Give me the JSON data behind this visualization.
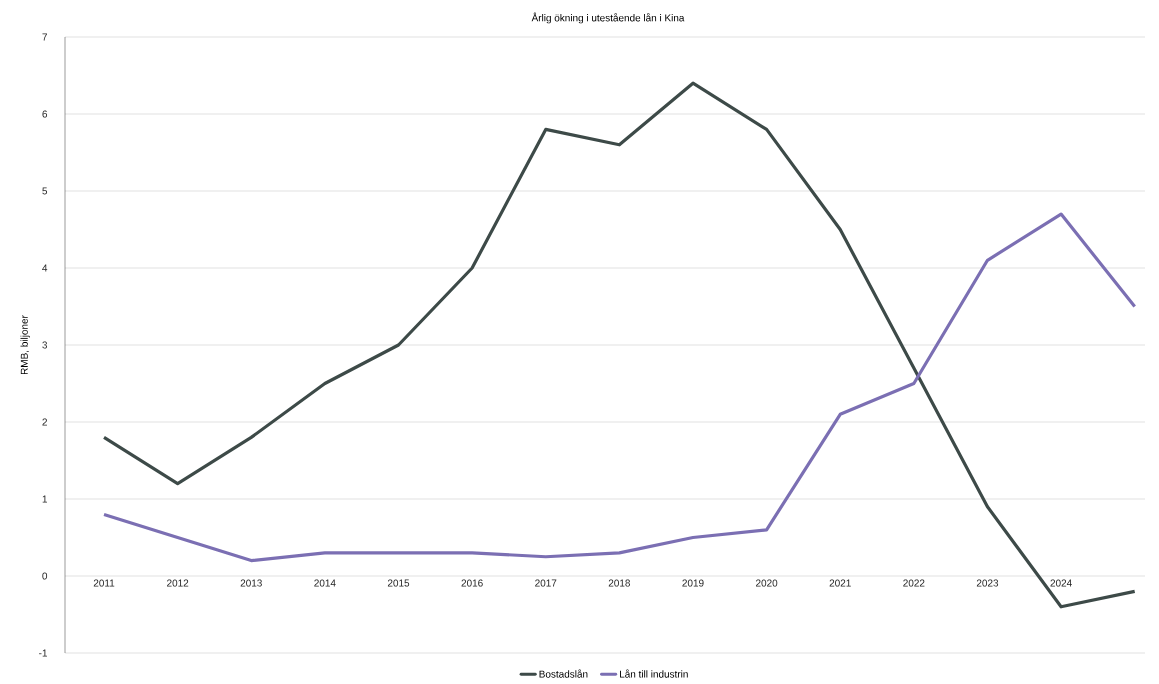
{
  "chart_data": {
    "type": "line",
    "title": "Årlig ökning i utestående lån i Kina",
    "ylabel": "RMB, biljoner",
    "categories": [
      "2011",
      "2012",
      "2013",
      "2014",
      "2015",
      "2016",
      "2017",
      "2018",
      "2019",
      "2020",
      "2021",
      "2022",
      "2023",
      "2024",
      null
    ],
    "series": [
      {
        "name": "Bostadslån",
        "color": "#3d4a48",
        "values": [
          1.8,
          1.2,
          1.8,
          2.5,
          3.0,
          4.0,
          5.8,
          5.6,
          6.4,
          5.8,
          4.5,
          2.7,
          0.9,
          -0.4,
          -0.2
        ]
      },
      {
        "name": "Lån till industrin",
        "color": "#7b6fb3",
        "values": [
          0.8,
          0.5,
          0.2,
          0.3,
          0.3,
          0.3,
          0.25,
          0.3,
          0.5,
          0.6,
          2.1,
          2.5,
          4.1,
          4.7,
          3.5
        ]
      }
    ],
    "ylim": [
      -1,
      7
    ],
    "yticks": [
      -1,
      0,
      1,
      2,
      3,
      4,
      5,
      6,
      7
    ],
    "grid": "y",
    "legend": "bottom",
    "marker": "none",
    "line_style": "solid"
  }
}
